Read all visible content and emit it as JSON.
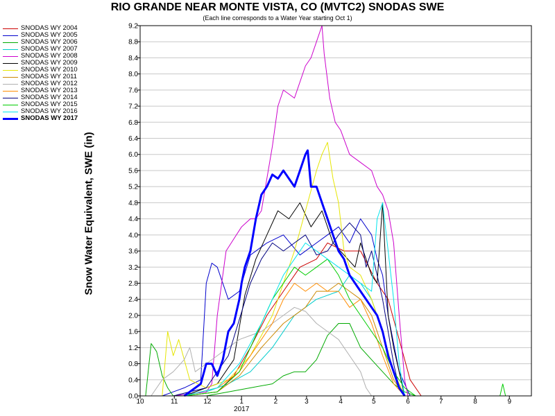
{
  "chart_data": {
    "type": "line",
    "title": "RIO GRANDE NEAR MONTE VISTA, CO (MVTC2) SNODAS SWE",
    "subtitle": "(Each line corresponds to a Water Year starting Oct 1)",
    "ylabel": "Snow Water Equivalent, SWE (in)",
    "xlabel": "",
    "ylim": [
      0,
      9.2
    ],
    "yticks": [
      "0.0",
      "0.4",
      "0.8",
      "1.2",
      "1.6",
      "2.0",
      "2.4",
      "2.8",
      "3.2",
      "3.6",
      "4.0",
      "4.4",
      "4.8",
      "5.2",
      "5.6",
      "6.0",
      "6.4",
      "6.8",
      "7.2",
      "7.6",
      "8.0",
      "8.4",
      "8.8",
      "9.2"
    ],
    "xlim": [
      0,
      355
    ],
    "x_unit": "days since Oct 1",
    "xticks": [
      {
        "day": 0,
        "label": "10"
      },
      {
        "day": 31,
        "label": "11"
      },
      {
        "day": 61,
        "label": "12"
      },
      {
        "day": 92,
        "label": "1"
      },
      {
        "day": 123,
        "label": "2"
      },
      {
        "day": 151,
        "label": "3"
      },
      {
        "day": 182,
        "label": "4"
      },
      {
        "day": 212,
        "label": "5"
      },
      {
        "day": 243,
        "label": "6"
      },
      {
        "day": 273,
        "label": "7"
      },
      {
        "day": 304,
        "label": "8"
      },
      {
        "day": 335,
        "label": "9"
      }
    ],
    "year_label": {
      "day": 92,
      "text": "2017"
    },
    "grid": "horizontal",
    "legend_position": "top-left, outside plot",
    "series": [
      {
        "name": "SNODAS WY 2004",
        "color": "#cc0000",
        "width": 1,
        "x": [
          40,
          70,
          85,
          100,
          115,
          130,
          145,
          160,
          170,
          185,
          200,
          215,
          225,
          235,
          245,
          255
        ],
        "y": [
          0,
          0.1,
          0.5,
          1.2,
          2.0,
          2.6,
          3.2,
          3.4,
          3.8,
          3.6,
          3.6,
          2.8,
          2.4,
          1.4,
          0.4,
          0
        ]
      },
      {
        "name": "SNODAS WY 2005",
        "color": "#0000cc",
        "width": 1,
        "x": [
          20,
          40,
          55,
          60,
          65,
          70,
          80,
          90,
          100,
          115,
          130,
          145,
          160,
          170,
          180,
          190,
          200,
          210,
          215,
          220,
          225,
          235,
          245
        ],
        "y": [
          0,
          0.2,
          0.4,
          2.8,
          3.3,
          3.2,
          2.4,
          2.6,
          3.5,
          3.8,
          4.0,
          3.5,
          3.8,
          4.0,
          4.2,
          3.8,
          4.4,
          4.0,
          3.4,
          3.0,
          2.0,
          0.6,
          0
        ]
      },
      {
        "name": "SNODAS WY 2006",
        "color": "#00aa00",
        "width": 1,
        "x": [
          5,
          10,
          15,
          20,
          25,
          30,
          60,
          80,
          100,
          120,
          130,
          140,
          150,
          160,
          170,
          180,
          190,
          200,
          210,
          220,
          230,
          240,
          250
        ],
        "y": [
          0,
          1.3,
          1.1,
          0.5,
          0.2,
          0,
          0,
          0.1,
          0.2,
          0.3,
          0.5,
          0.6,
          0.6,
          0.9,
          1.5,
          1.8,
          1.8,
          1.2,
          0.9,
          0.6,
          0.3,
          0.1,
          0
        ]
      },
      {
        "name": "SNODAS WY 2007",
        "color": "#00cccc",
        "width": 1,
        "x": [
          30,
          60,
          80,
          100,
          120,
          140,
          160,
          180,
          190,
          200,
          210,
          220,
          230,
          240
        ],
        "y": [
          0,
          0.1,
          0.3,
          0.6,
          1.2,
          2.0,
          2.4,
          2.6,
          3.0,
          2.8,
          2.4,
          1.6,
          0.6,
          0
        ]
      },
      {
        "name": "SNODAS WY 2008",
        "color": "#cc00cc",
        "width": 1,
        "x": [
          30,
          60,
          65,
          70,
          78,
          85,
          92,
          100,
          105,
          110,
          115,
          120,
          125,
          130,
          140,
          150,
          155,
          160,
          165,
          167,
          172,
          177,
          182,
          190,
          200,
          210,
          215,
          220,
          225,
          230,
          235,
          240,
          243
        ],
        "y": [
          0,
          0.1,
          0.3,
          2.0,
          3.6,
          3.9,
          4.2,
          4.4,
          4.4,
          4.6,
          5.4,
          6.2,
          7.2,
          7.6,
          7.4,
          8.2,
          8.4,
          8.8,
          9.2,
          8.5,
          7.4,
          6.8,
          6.6,
          6.0,
          5.8,
          5.6,
          5.2,
          5.0,
          4.6,
          3.8,
          2.0,
          0.4,
          0
        ]
      },
      {
        "name": "SNODAS WY 2009",
        "color": "#000000",
        "width": 1,
        "x": [
          40,
          70,
          85,
          95,
          105,
          115,
          125,
          135,
          145,
          155,
          165,
          175,
          185,
          195,
          200,
          205,
          210,
          215,
          220,
          225,
          230,
          240
        ],
        "y": [
          0,
          0.3,
          0.9,
          2.5,
          3.4,
          4.0,
          4.6,
          4.4,
          4.8,
          4.2,
          4.6,
          3.8,
          3.5,
          3.2,
          3.8,
          3.4,
          3.0,
          2.8,
          4.8,
          2.0,
          1.2,
          0
        ]
      },
      {
        "name": "SNODAS WY 2010",
        "color": "#e6e600",
        "width": 1,
        "x": [
          20,
          25,
          30,
          35,
          45,
          60,
          80,
          100,
          120,
          140,
          160,
          165,
          170,
          175,
          180,
          185,
          190,
          200,
          210,
          220,
          230,
          240
        ],
        "y": [
          0,
          1.6,
          1.0,
          1.4,
          0.4,
          0.2,
          0.4,
          1.0,
          2.0,
          3.6,
          5.6,
          6.0,
          6.3,
          5.4,
          4.8,
          3.6,
          3.2,
          3.0,
          2.4,
          1.6,
          0.6,
          0
        ]
      },
      {
        "name": "SNODAS WY 2011",
        "color": "#cc8800",
        "width": 1,
        "x": [
          40,
          70,
          90,
          110,
          130,
          150,
          160,
          170,
          180,
          190,
          200,
          210,
          220,
          230,
          240
        ],
        "y": [
          0,
          0.1,
          0.5,
          1.2,
          1.8,
          2.2,
          2.6,
          2.6,
          2.8,
          2.6,
          2.4,
          2.0,
          1.2,
          0.4,
          0
        ]
      },
      {
        "name": "SNODAS WY 2012",
        "color": "#b0b0b0",
        "width": 1,
        "x": [
          10,
          20,
          30,
          40,
          45,
          50,
          60,
          70,
          80,
          90,
          100,
          110,
          120,
          130,
          140,
          150,
          160,
          170,
          180,
          190,
          200,
          205,
          210
        ],
        "y": [
          0,
          0.4,
          0.6,
          0.9,
          1.2,
          0.6,
          0.8,
          1.0,
          1.2,
          1.4,
          1.5,
          1.6,
          1.8,
          2.0,
          2.2,
          2.1,
          1.8,
          1.6,
          1.4,
          1.0,
          0.6,
          0.2,
          0
        ]
      },
      {
        "name": "SNODAS WY 2013",
        "color": "#ff8c00",
        "width": 1,
        "x": [
          40,
          70,
          90,
          110,
          120,
          130,
          140,
          150,
          160,
          170,
          180,
          190,
          200,
          210,
          220,
          230,
          240
        ],
        "y": [
          0,
          0.2,
          0.6,
          1.4,
          1.8,
          2.4,
          2.8,
          2.6,
          2.8,
          2.6,
          2.6,
          2.2,
          2.4,
          1.8,
          1.0,
          0.3,
          0
        ]
      },
      {
        "name": "SNODAS WY 2014",
        "color": "#000080",
        "width": 1,
        "x": [
          30,
          60,
          80,
          100,
          110,
          120,
          130,
          140,
          150,
          160,
          170,
          180,
          190,
          200,
          205,
          210,
          215,
          220,
          225,
          230,
          235,
          240
        ],
        "y": [
          0,
          0.2,
          1.0,
          2.8,
          3.4,
          3.8,
          3.6,
          3.8,
          4.0,
          3.5,
          3.6,
          4.0,
          4.3,
          4.0,
          3.2,
          3.6,
          3.0,
          2.4,
          1.6,
          0.8,
          0.2,
          0
        ]
      },
      {
        "name": "SNODAS WY 2015",
        "color": "#00cc00",
        "width": 1,
        "x": [
          40,
          70,
          90,
          100,
          110,
          120,
          130,
          140,
          150,
          160,
          170,
          180,
          190,
          200,
          210,
          220,
          230,
          240,
          250
        ],
        "y": [
          0,
          0.1,
          0.6,
          1.2,
          1.8,
          2.4,
          2.8,
          3.2,
          3.0,
          3.2,
          3.4,
          3.0,
          2.4,
          2.0,
          1.6,
          1.2,
          0.6,
          0.2,
          0
        ]
      },
      {
        "name": "SNODAS WY 2016",
        "color": "#00e5ee",
        "width": 1,
        "x": [
          40,
          70,
          90,
          110,
          120,
          130,
          140,
          150,
          160,
          170,
          180,
          190,
          200,
          210,
          215,
          220,
          225,
          230,
          235,
          240
        ],
        "y": [
          0,
          0.2,
          0.8,
          1.8,
          2.4,
          3.0,
          3.4,
          3.8,
          3.6,
          3.4,
          3.2,
          3.0,
          2.8,
          2.6,
          4.4,
          4.8,
          3.6,
          2.4,
          0.8,
          0
        ]
      },
      {
        "name": "SNODAS WY 2017",
        "color": "#0000ff",
        "width": 3,
        "x": [
          40,
          55,
          60,
          65,
          70,
          75,
          80,
          85,
          90,
          92,
          95,
          100,
          105,
          110,
          115,
          120,
          125,
          130,
          135,
          140,
          145,
          150,
          152,
          155,
          160,
          165,
          170,
          175,
          180,
          185,
          190,
          200,
          210,
          215,
          220,
          225,
          230,
          235,
          240
        ],
        "y": [
          0,
          0.3,
          0.8,
          0.8,
          0.5,
          0.9,
          1.6,
          1.8,
          2.4,
          2.8,
          3.2,
          3.6,
          4.4,
          5.0,
          5.2,
          5.5,
          5.4,
          5.6,
          5.4,
          5.2,
          5.6,
          6.0,
          6.1,
          5.2,
          5.2,
          4.8,
          4.4,
          4.0,
          3.6,
          3.4,
          3.0,
          2.6,
          2.2,
          2.0,
          1.6,
          1.0,
          0.6,
          0.2,
          0
        ]
      }
    ],
    "markers": [
      {
        "day": 329,
        "value": 0.3,
        "color": "#00cc00"
      }
    ]
  }
}
